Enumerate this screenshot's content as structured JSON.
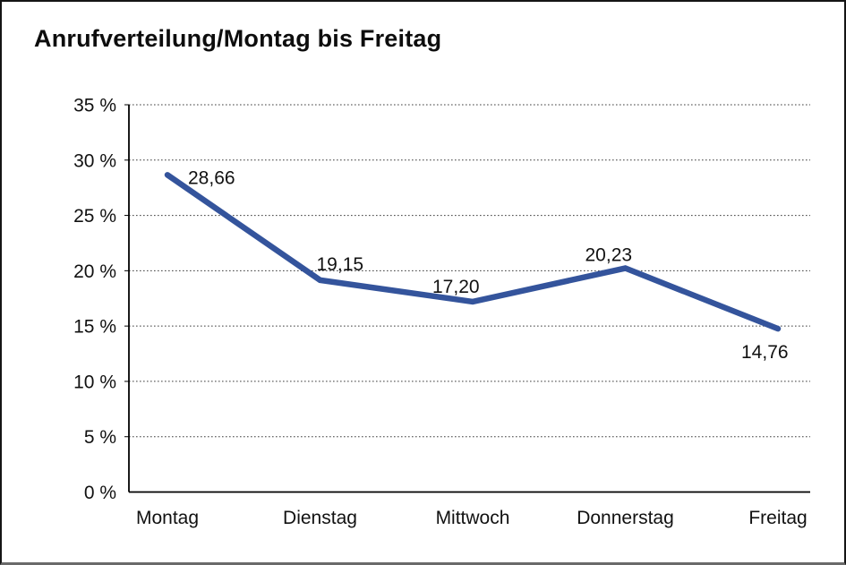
{
  "chart_data": {
    "type": "line",
    "title": "Anrufverteilung/Montag bis Freitag",
    "categories": [
      "Montag",
      "Dienstag",
      "Mittwoch",
      "Donnerstag",
      "Freitag"
    ],
    "values": [
      28.66,
      19.15,
      17.2,
      20.23,
      14.76
    ],
    "value_labels": [
      "28,66",
      "19,15",
      "17,20",
      "20,23",
      "14,76"
    ],
    "y_ticks": [
      0,
      5,
      10,
      15,
      20,
      25,
      30,
      35
    ],
    "y_tick_labels": [
      "0 %",
      "5 %",
      "10 %",
      "15 %",
      "20 %",
      "25 %",
      "30 %",
      "35 %"
    ],
    "ylim": [
      0,
      35
    ],
    "xlabel": "",
    "ylabel": "",
    "grid": "horizontal-dotted",
    "legend": "none",
    "colors": {
      "line": "#34549c",
      "text": "#111111",
      "grid": "#3c3c3c",
      "axis": "#000000",
      "background": "#ffffff",
      "frame_border": "#141414",
      "frame_bottom": "#6a6a6a"
    }
  }
}
